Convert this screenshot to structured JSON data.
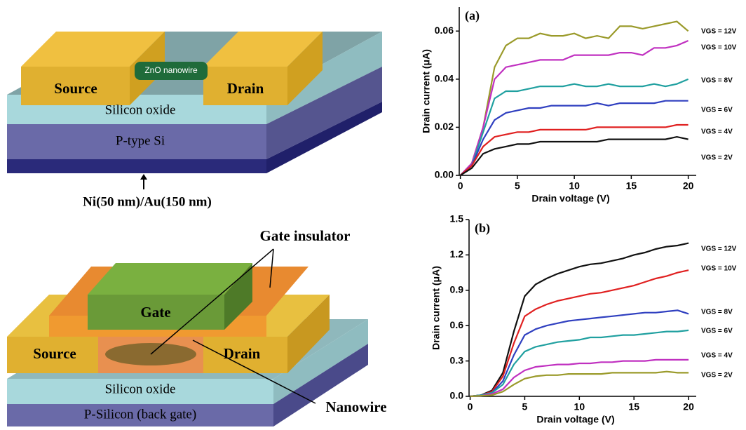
{
  "diagrams": {
    "top": {
      "source": "Source",
      "nanowire": "ZnO nanowire",
      "drain": "Drain",
      "oxide": "Silicon oxide",
      "substrate": "P-type Si",
      "contact": "Ni(50 nm)/Au(150 nm)"
    },
    "bottom": {
      "insulator": "Gate insulator",
      "gate": "Gate",
      "source": "Source",
      "drain": "Drain",
      "oxide": "Silicon oxide",
      "substrate": "P-Silicon (back gate)",
      "nanowire": "Nanowire"
    }
  },
  "chart_data": [
    {
      "type": "line",
      "annotation": "(a)",
      "x_label": "Drain voltage (V)",
      "y_label": "Drain current (μA)",
      "x": [
        0,
        1,
        2,
        3,
        4,
        5,
        6,
        7,
        8,
        9,
        10,
        11,
        12,
        13,
        14,
        15,
        16,
        17,
        18,
        19,
        20
      ],
      "xlim": [
        -0.1,
        20.7
      ],
      "xticks": [
        0,
        5,
        10,
        15,
        20
      ],
      "ylim": [
        0,
        0.07
      ],
      "yticks": [
        {
          "value": 0,
          "label": "0.00"
        },
        0.02,
        0.04,
        0.06
      ],
      "series": [
        {
          "name": "VGS = 12V",
          "color": "#9a9a2a",
          "values": [
            0,
            0.005,
            0.02,
            0.045,
            0.054,
            0.057,
            0.057,
            0.059,
            0.058,
            0.058,
            0.059,
            0.057,
            0.058,
            0.057,
            0.062,
            0.062,
            0.061,
            0.062,
            0.063,
            0.064,
            0.06
          ]
        },
        {
          "name": "VGS = 10V",
          "color": "#c030c0",
          "values": [
            0,
            0.005,
            0.02,
            0.04,
            0.045,
            0.046,
            0.047,
            0.048,
            0.048,
            0.048,
            0.05,
            0.05,
            0.05,
            0.05,
            0.051,
            0.051,
            0.05,
            0.053,
            0.053,
            0.054,
            0.056
          ]
        },
        {
          "name": "VGS = 8V",
          "color": "#20a0a0",
          "values": [
            0,
            0.004,
            0.018,
            0.032,
            0.035,
            0.035,
            0.036,
            0.037,
            0.037,
            0.037,
            0.038,
            0.037,
            0.037,
            0.038,
            0.037,
            0.037,
            0.037,
            0.038,
            0.037,
            0.038,
            0.04
          ]
        },
        {
          "name": "VGS = 6V",
          "color": "#3040c0",
          "values": [
            0,
            0.004,
            0.015,
            0.023,
            0.026,
            0.027,
            0.028,
            0.028,
            0.029,
            0.029,
            0.029,
            0.029,
            0.03,
            0.029,
            0.03,
            0.03,
            0.03,
            0.03,
            0.031,
            0.031,
            0.031
          ]
        },
        {
          "name": "VGS = 4V",
          "color": "#e02020",
          "values": [
            0,
            0.004,
            0.012,
            0.016,
            0.017,
            0.018,
            0.018,
            0.019,
            0.019,
            0.019,
            0.019,
            0.019,
            0.02,
            0.02,
            0.02,
            0.02,
            0.02,
            0.02,
            0.02,
            0.021,
            0.021
          ]
        },
        {
          "name": "VGS = 2V",
          "color": "#111111",
          "values": [
            0,
            0.003,
            0.009,
            0.011,
            0.012,
            0.013,
            0.013,
            0.014,
            0.014,
            0.014,
            0.014,
            0.014,
            0.014,
            0.015,
            0.015,
            0.015,
            0.015,
            0.015,
            0.015,
            0.016,
            0.015
          ]
        }
      ]
    },
    {
      "type": "line",
      "annotation": "(b)",
      "x_label": "Drain voltage (V)",
      "y_label": "Drain current (μA)",
      "x": [
        0,
        1,
        2,
        3,
        4,
        5,
        6,
        7,
        8,
        9,
        10,
        11,
        12,
        13,
        14,
        15,
        16,
        17,
        18,
        19,
        20
      ],
      "xlim": [
        -0.1,
        20.7
      ],
      "xticks": [
        0,
        5,
        10,
        15,
        20
      ],
      "ylim": [
        0,
        1.5
      ],
      "yticks": [
        {
          "value": 0,
          "label": "0.0"
        },
        0.3,
        0.6,
        0.9,
        1.2,
        1.5
      ],
      "series": [
        {
          "name": "VGS = 12V",
          "color": "#111111",
          "values": [
            0,
            0.01,
            0.05,
            0.2,
            0.55,
            0.85,
            0.95,
            1.0,
            1.04,
            1.07,
            1.1,
            1.12,
            1.13,
            1.15,
            1.17,
            1.2,
            1.22,
            1.25,
            1.27,
            1.28,
            1.3
          ]
        },
        {
          "name": "VGS = 10V",
          "color": "#e02020",
          "values": [
            0,
            0.01,
            0.04,
            0.17,
            0.45,
            0.68,
            0.74,
            0.78,
            0.81,
            0.83,
            0.85,
            0.87,
            0.88,
            0.9,
            0.92,
            0.94,
            0.97,
            1.0,
            1.02,
            1.05,
            1.07
          ]
        },
        {
          "name": "VGS = 8V",
          "color": "#3040c0",
          "values": [
            0,
            0.01,
            0.03,
            0.13,
            0.35,
            0.52,
            0.57,
            0.6,
            0.62,
            0.64,
            0.65,
            0.66,
            0.67,
            0.68,
            0.69,
            0.7,
            0.71,
            0.71,
            0.72,
            0.73,
            0.7
          ]
        },
        {
          "name": "VGS = 6V",
          "color": "#20a0a0",
          "values": [
            0,
            0.01,
            0.03,
            0.1,
            0.27,
            0.38,
            0.42,
            0.44,
            0.46,
            0.47,
            0.48,
            0.5,
            0.5,
            0.51,
            0.52,
            0.52,
            0.53,
            0.54,
            0.55,
            0.55,
            0.56
          ]
        },
        {
          "name": "VGS = 4V",
          "color": "#c030c0",
          "values": [
            0,
            0.005,
            0.02,
            0.06,
            0.16,
            0.22,
            0.25,
            0.26,
            0.27,
            0.27,
            0.28,
            0.28,
            0.29,
            0.29,
            0.3,
            0.3,
            0.3,
            0.31,
            0.31,
            0.31,
            0.31
          ]
        },
        {
          "name": "VGS = 2V",
          "color": "#9a9a2a",
          "values": [
            0,
            0.005,
            0.01,
            0.04,
            0.1,
            0.15,
            0.17,
            0.18,
            0.18,
            0.19,
            0.19,
            0.19,
            0.19,
            0.2,
            0.2,
            0.2,
            0.2,
            0.2,
            0.21,
            0.2,
            0.2
          ]
        }
      ]
    }
  ]
}
